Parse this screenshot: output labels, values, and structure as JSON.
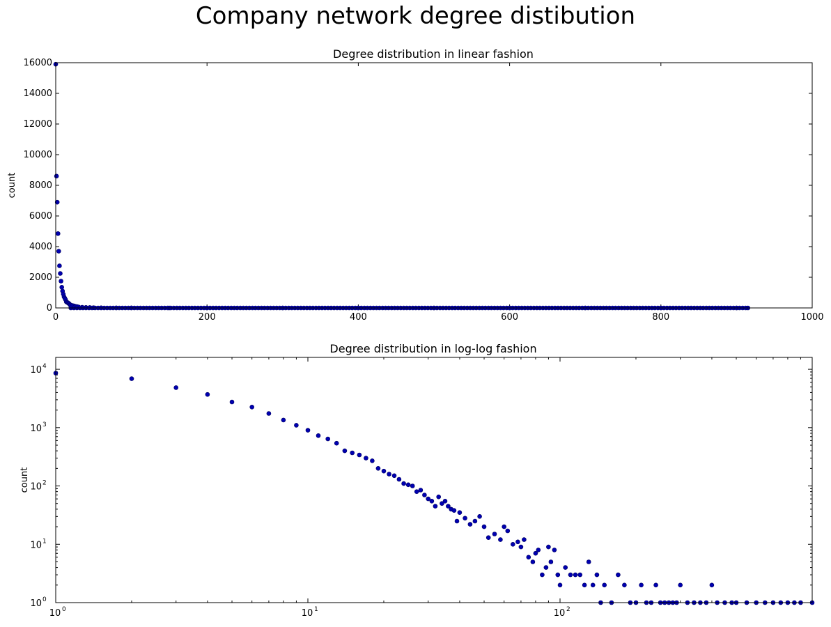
{
  "figure_title": "Company network degree distibution",
  "chart_data": [
    {
      "type": "scatter",
      "title": "Degree distribution in linear fashion",
      "xlabel": "",
      "ylabel": "count",
      "xscale": "linear",
      "yscale": "linear",
      "xlim": [
        0,
        1000
      ],
      "ylim": [
        0,
        16000
      ],
      "xticks": [
        "0",
        "200",
        "400",
        "600",
        "800",
        "1000"
      ],
      "yticks": [
        "0",
        "2000",
        "4000",
        "6000",
        "8000",
        "10000",
        "12000",
        "14000",
        "16000"
      ],
      "grid": false,
      "marker_color": "#0000b0",
      "x": [
        0,
        1,
        2,
        3,
        4,
        5,
        6,
        7,
        8,
        9,
        10,
        11,
        12,
        13,
        14,
        15,
        16,
        17,
        18,
        19,
        20,
        22,
        24,
        26,
        28,
        30,
        35,
        40,
        45,
        50,
        60,
        80,
        100,
        150,
        200,
        300,
        400,
        500,
        600,
        700,
        800,
        900,
        915
      ],
      "y": [
        15900,
        8600,
        6900,
        4850,
        3700,
        2750,
        2250,
        1750,
        1350,
        1100,
        900,
        730,
        640,
        540,
        400,
        370,
        340,
        300,
        270,
        200,
        180,
        160,
        130,
        105,
        90,
        70,
        45,
        30,
        25,
        15,
        10,
        6,
        3,
        2,
        1,
        1,
        1,
        1,
        1,
        1,
        1,
        1,
        1
      ]
    },
    {
      "type": "scatter",
      "title": "Degree distribution in log-log fashion",
      "xlabel": "",
      "ylabel": "count",
      "xscale": "log",
      "yscale": "log",
      "xlim": [
        1,
        1000
      ],
      "ylim": [
        1,
        16000
      ],
      "xticks": [
        {
          "base": "10",
          "exp": "0"
        },
        {
          "base": "10",
          "exp": "1"
        },
        {
          "base": "10",
          "exp": "2"
        }
      ],
      "yticks": [
        {
          "base": "10",
          "exp": "0"
        },
        {
          "base": "10",
          "exp": "1"
        },
        {
          "base": "10",
          "exp": "2"
        },
        {
          "base": "10",
          "exp": "3"
        },
        {
          "base": "10",
          "exp": "4"
        }
      ],
      "grid": false,
      "marker_color": "#0000b0",
      "x": [
        1,
        2,
        3,
        4,
        5,
        6,
        7,
        8,
        9,
        10,
        11,
        12,
        13,
        14,
        15,
        16,
        17,
        18,
        19,
        20,
        21,
        22,
        23,
        24,
        25,
        26,
        27,
        28,
        29,
        30,
        31,
        32,
        33,
        34,
        35,
        36,
        37,
        38,
        39,
        40,
        42,
        44,
        46,
        48,
        50,
        52,
        55,
        58,
        60,
        62,
        65,
        68,
        70,
        72,
        75,
        78,
        80,
        82,
        85,
        88,
        90,
        92,
        95,
        98,
        100,
        105,
        110,
        115,
        120,
        125,
        130,
        135,
        140,
        145,
        150,
        160,
        170,
        180,
        190,
        200,
        210,
        220,
        230,
        240,
        250,
        260,
        270,
        280,
        290,
        300,
        320,
        340,
        360,
        380,
        400,
        420,
        450,
        480,
        500,
        550,
        600,
        650,
        700,
        750,
        800,
        850,
        900,
        1000
      ],
      "y": [
        8600,
        6900,
        4850,
        3700,
        2750,
        2250,
        1750,
        1350,
        1100,
        900,
        730,
        640,
        540,
        400,
        370,
        340,
        300,
        270,
        200,
        180,
        160,
        150,
        130,
        110,
        105,
        100,
        80,
        85,
        70,
        60,
        55,
        45,
        65,
        50,
        55,
        45,
        40,
        38,
        25,
        35,
        28,
        22,
        25,
        30,
        20,
        13,
        15,
        12,
        20,
        17,
        10,
        11,
        9,
        12,
        6,
        5,
        7,
        8,
        3,
        4,
        9,
        5,
        8,
        3,
        2,
        4,
        3,
        3,
        3,
        2,
        5,
        2,
        3,
        1,
        2,
        1,
        3,
        2,
        1,
        1,
        2,
        1,
        1,
        2,
        1,
        1,
        1,
        1,
        1,
        2,
        1,
        1,
        1,
        1,
        2,
        1,
        1,
        1,
        1,
        1,
        1,
        1,
        1,
        1,
        1,
        1,
        1,
        1
      ]
    }
  ]
}
